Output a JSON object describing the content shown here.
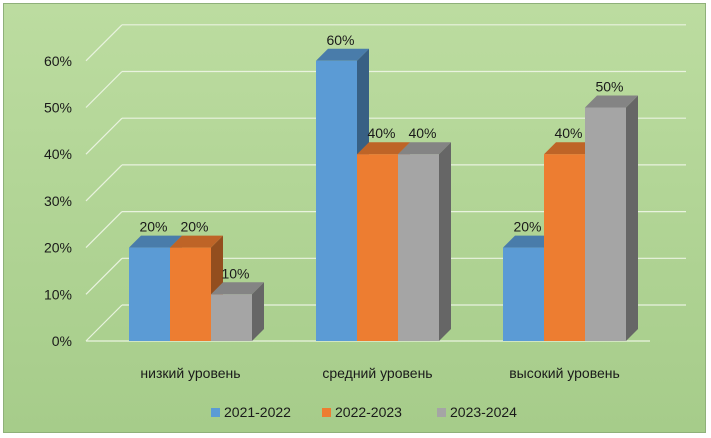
{
  "chart_data": {
    "type": "bar",
    "title": "",
    "xlabel": "",
    "ylabel": "",
    "ylim": [
      0,
      60
    ],
    "y_ticks": [
      "0%",
      "10%",
      "20%",
      "30%",
      "40%",
      "50%",
      "60%"
    ],
    "categories": [
      "низкий уровень",
      "средний уровень",
      "высокий уровень"
    ],
    "series": [
      {
        "name": "2021-2022",
        "values": [
          20,
          60,
          20
        ],
        "labels": [
          "20%",
          "60%",
          "20%"
        ],
        "color": "#5b9bd5"
      },
      {
        "name": "2022-2023",
        "values": [
          20,
          40,
          40
        ],
        "labels": [
          "20%",
          "40%",
          "40%"
        ],
        "color": "#ed7d31"
      },
      {
        "name": "2023-2024",
        "values": [
          10,
          40,
          50
        ],
        "labels": [
          "10%",
          "40%",
          "50%"
        ],
        "color": "#a5a5a5"
      }
    ],
    "grid": true,
    "legend_position": "bottom",
    "style": "3d-clustered-column"
  }
}
